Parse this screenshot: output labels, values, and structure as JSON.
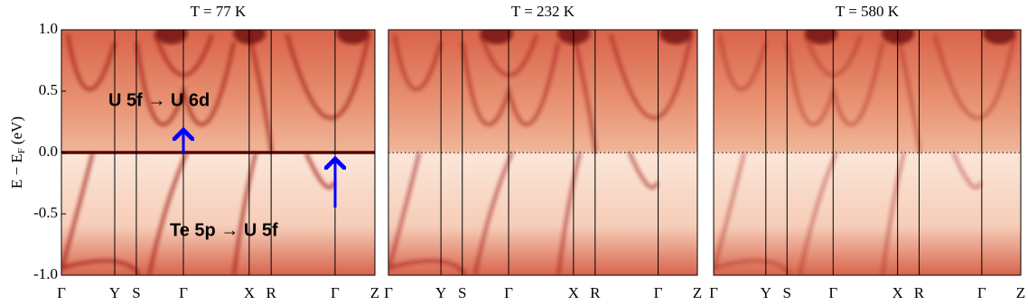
{
  "chart_data": [
    {
      "type": "heatmap",
      "title": "T = 77 K",
      "y_label": {
        "main": "E − E",
        "subscript": "F",
        "unit": "(eV)"
      },
      "ylim": [
        -1,
        1
      ],
      "yticks": [
        {
          "value": 1,
          "label": "1.0"
        },
        {
          "value": 0.5,
          "label": "0.5"
        },
        {
          "value": 0,
          "label": "0.0"
        },
        {
          "value": -0.5,
          "label": "-0.5"
        },
        {
          "value": -1,
          "label": "-1.0"
        }
      ],
      "xlim": [
        0,
        1
      ],
      "xticks": [
        {
          "value": 0,
          "label": "Γ"
        },
        {
          "value": 0.17,
          "label": "Y"
        },
        {
          "value": 0.239,
          "label": "S"
        },
        {
          "value": 0.389,
          "label": "Γ"
        },
        {
          "value": 0.599,
          "label": "X"
        },
        {
          "value": 0.669,
          "label": "R"
        },
        {
          "value": 0.873,
          "label": "Γ"
        },
        {
          "value": 1,
          "label": "Z"
        }
      ],
      "hline": {
        "value": 0,
        "style": "solid"
      },
      "annotations": [
        "U 5f → U 6d",
        "Te 5p → U 5f"
      ]
    },
    {
      "type": "heatmap",
      "title": "T = 232 K",
      "ylim": [
        -1,
        1
      ],
      "xlim": [
        0,
        1
      ],
      "xticks": [
        {
          "value": 0,
          "label": "Γ"
        },
        {
          "value": 0.17,
          "label": "Y"
        },
        {
          "value": 0.239,
          "label": "S"
        },
        {
          "value": 0.389,
          "label": "Γ"
        },
        {
          "value": 0.599,
          "label": "X"
        },
        {
          "value": 0.669,
          "label": "R"
        },
        {
          "value": 0.873,
          "label": "Γ"
        },
        {
          "value": 1,
          "label": "Z"
        }
      ],
      "hline": {
        "value": 0,
        "style": "dotted"
      }
    },
    {
      "type": "heatmap",
      "title": "T = 580 K",
      "ylim": [
        -1,
        1
      ],
      "xlim": [
        0,
        1
      ],
      "xticks": [
        {
          "value": 0,
          "label": "Γ"
        },
        {
          "value": 0.17,
          "label": "Y"
        },
        {
          "value": 0.239,
          "label": "S"
        },
        {
          "value": 0.389,
          "label": "Γ"
        },
        {
          "value": 0.599,
          "label": "X"
        },
        {
          "value": 0.669,
          "label": "R"
        },
        {
          "value": 0.873,
          "label": "Γ"
        },
        {
          "value": 1,
          "label": "Z"
        }
      ],
      "hline": {
        "value": 0,
        "style": "dotted"
      }
    }
  ]
}
